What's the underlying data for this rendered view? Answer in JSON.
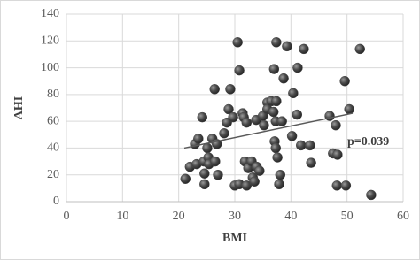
{
  "chart_data": {
    "type": "scatter",
    "x_label": "BMI",
    "y_label": "AHI",
    "annotation": "p=0.039",
    "xlim": [
      0,
      60
    ],
    "xticks": [
      0,
      10,
      20,
      30,
      40,
      50,
      60
    ],
    "ylim": [
      0,
      140
    ],
    "yticks": [
      0,
      20,
      40,
      60,
      80,
      100,
      120,
      140
    ],
    "grid": true,
    "color": "#4a4a4a",
    "series": [
      {
        "x": [
          21.2,
          22,
          22.9,
          23.2,
          23.5,
          24.2,
          24.5,
          24.6,
          24.6,
          25.1,
          25.3,
          25.4,
          26,
          26.4,
          26.5,
          26.8,
          27,
          28.1,
          28.6,
          28.9,
          29.2,
          29.7,
          30,
          30.5,
          30.8,
          30.8,
          31.4,
          31.6,
          31.8,
          32.1,
          32.1,
          32.4,
          33,
          33.2,
          33.5,
          33.8,
          33.9,
          34.4,
          35,
          35.2,
          35.8,
          35.8,
          36.5,
          36.9,
          37,
          37.1,
          37.3,
          37.4,
          37.3,
          37.4,
          37.6,
          37.9,
          38.1,
          38.4,
          38.7,
          39.3,
          40.2,
          40.4,
          41.1,
          41.2,
          41.8,
          42.3,
          43.4,
          43.6,
          46.9,
          47.5,
          48,
          48.3,
          48.2,
          49.6,
          49.8,
          50.4,
          52.3,
          54.3
        ],
        "values": [
          17,
          26,
          43,
          28,
          47,
          63,
          30,
          21,
          13,
          40,
          33,
          28,
          47,
          84,
          30,
          43,
          20,
          51,
          59,
          69,
          84,
          63,
          12,
          119,
          98,
          13,
          66,
          63,
          30,
          59,
          12,
          25,
          30,
          18,
          15,
          61,
          26,
          23,
          64,
          57,
          74,
          69,
          75,
          67,
          99,
          45,
          40,
          119,
          60,
          75,
          33,
          13,
          20,
          60,
          92,
          116,
          49,
          81,
          65,
          100,
          42,
          114,
          42,
          29,
          64,
          36,
          57,
          35,
          12,
          90,
          12,
          69,
          114,
          5
        ]
      }
    ],
    "trendline": {
      "color": "#595959",
      "x": [
        21,
        51
      ],
      "values": [
        40,
        66
      ]
    }
  }
}
